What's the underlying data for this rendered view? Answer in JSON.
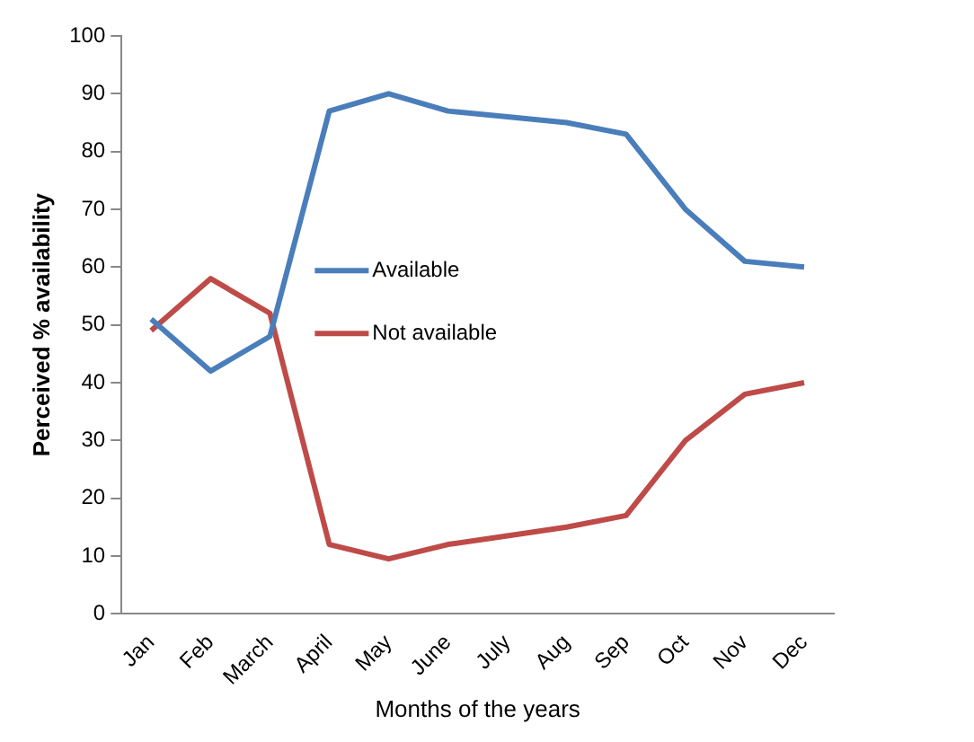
{
  "chart_data": {
    "type": "line",
    "xlabel": "Months of the years",
    "ylabel": "Perceived % availability",
    "categories": [
      "Jan",
      "Feb",
      "March",
      "April",
      "May",
      "June",
      "July",
      "Aug",
      "Sep",
      "Oct",
      "Nov",
      "Dec"
    ],
    "series": [
      {
        "name": "Available",
        "color": "#4a7ebb",
        "values": [
          51,
          42,
          48,
          87,
          90,
          87,
          86,
          85,
          83,
          70,
          61,
          60
        ]
      },
      {
        "name": "Not available",
        "color": "#be4b48",
        "values": [
          49,
          58,
          52,
          12,
          9.5,
          12,
          13.5,
          15,
          17,
          30,
          38,
          40
        ]
      }
    ],
    "ylim": [
      0,
      100
    ],
    "yticks": [
      0,
      10,
      20,
      30,
      40,
      50,
      60,
      70,
      80,
      90,
      100
    ],
    "grid": false,
    "legend": "center",
    "marker": "none",
    "line_style": "solid"
  }
}
